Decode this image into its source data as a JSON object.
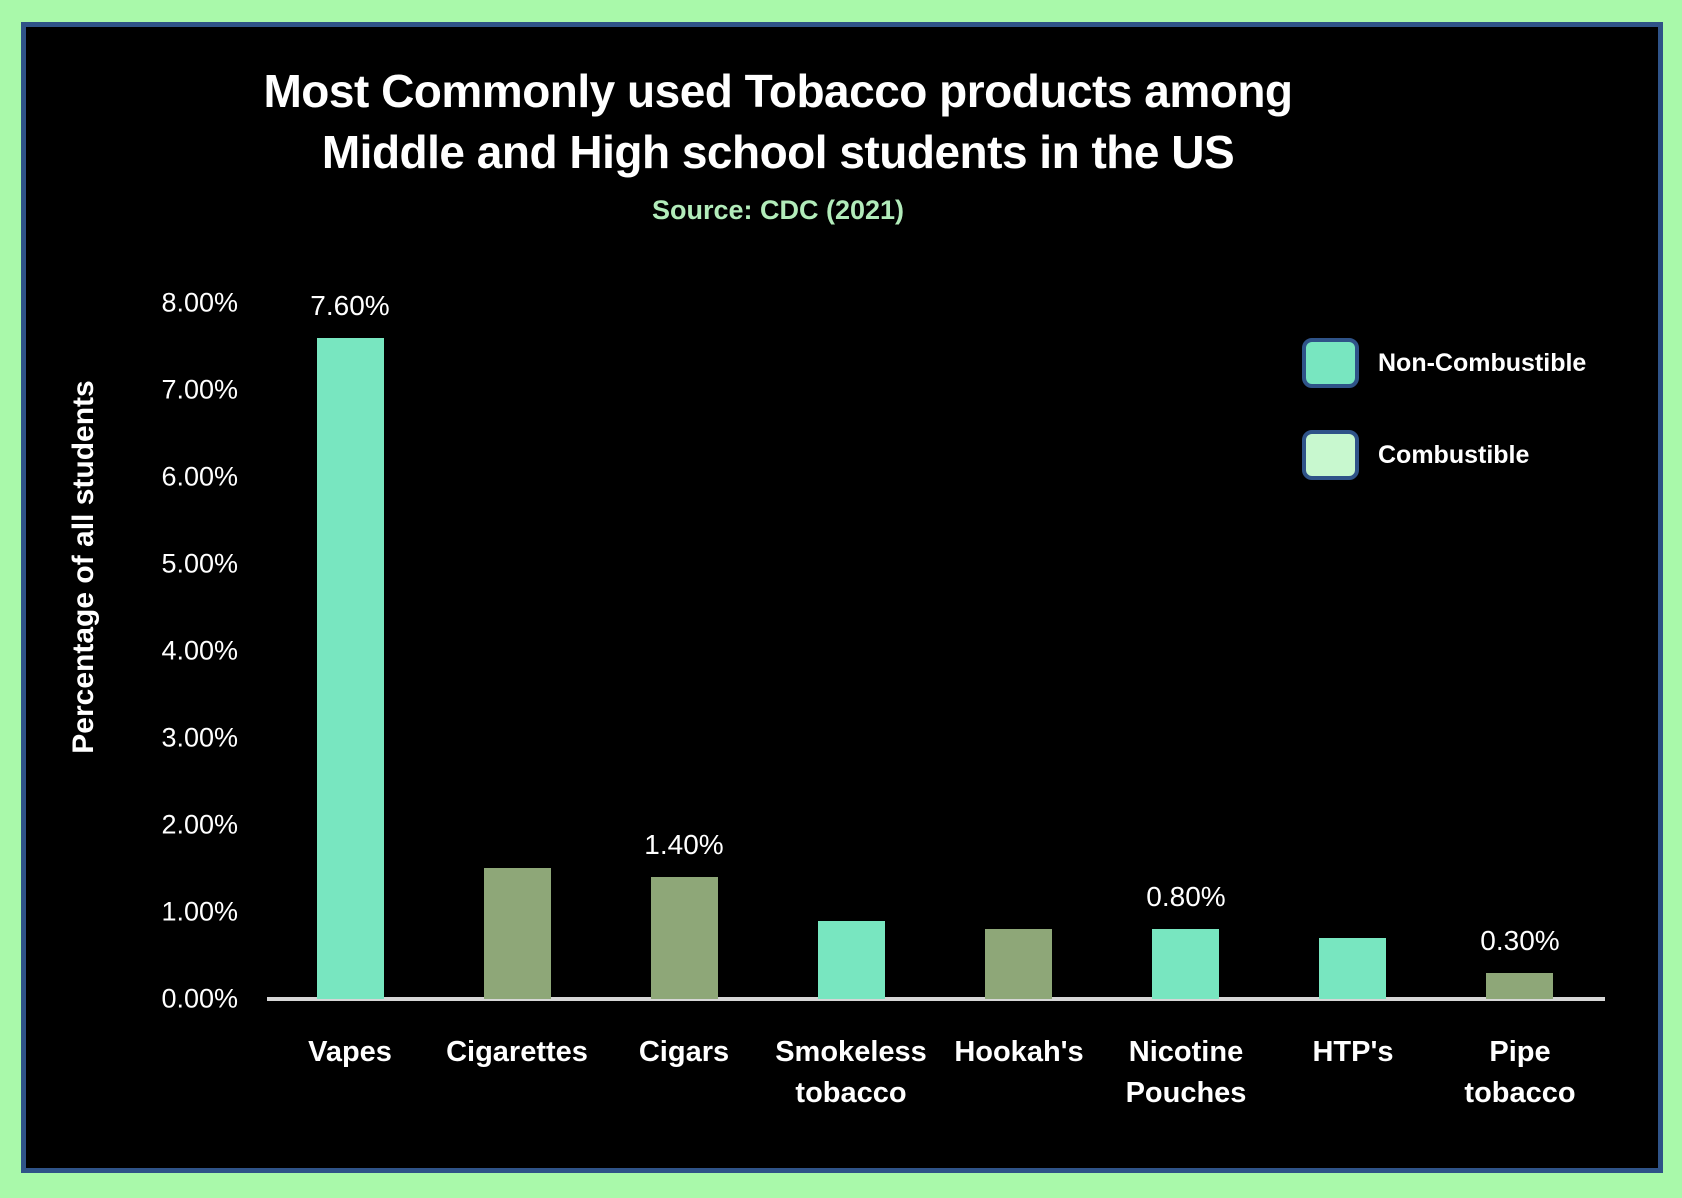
{
  "page": {
    "background": "#a9f9aa",
    "border_color": "#2f5388",
    "chart_background": "#000000"
  },
  "header": {
    "title_line1": "Most Commonly used Tobacco products among",
    "title_line2": "Middle and High school students in the US",
    "source": "Source: CDC (2021)",
    "source_color": "#b2ecba"
  },
  "legend": {
    "items": [
      {
        "label": "Non-Combustible",
        "swatch_color": "#78e6c0"
      },
      {
        "label": "Combustible",
        "swatch_color": "#c8f8cf"
      }
    ]
  },
  "chart_data": {
    "type": "bar",
    "title": "Most Commonly used Tobacco products among Middle and High school students in the US",
    "subtitle": "Source: CDC (2021)",
    "xlabel": "",
    "ylabel": "Percentage of all students",
    "ylim": [
      0,
      8
    ],
    "y_ticks": [
      "0.00%",
      "1.00%",
      "2.00%",
      "3.00%",
      "4.00%",
      "5.00%",
      "6.00%",
      "7.00%",
      "8.00%"
    ],
    "grid": false,
    "legend_position": "top-right",
    "categories": [
      "Vapes",
      "Cigarettes",
      "Cigars",
      "Smokeless tobacco",
      "Hookah's",
      "Nicotine Pouches",
      "HTP's",
      "Pipe tobacco"
    ],
    "values": [
      7.6,
      1.5,
      1.4,
      0.9,
      0.8,
      0.8,
      0.7,
      0.3
    ],
    "bar_types": [
      "Non-Combustible",
      "Combustible",
      "Combustible",
      "Non-Combustible",
      "Combustible",
      "Non-Combustible",
      "Non-Combustible",
      "Combustible"
    ],
    "data_labels": [
      "7.60%",
      "",
      "1.40%",
      "",
      "",
      "0.80%",
      "",
      "0.30%"
    ],
    "bar_colors": {
      "Non-Combustible": "#78e6c0",
      "Combustible": "#8ea778"
    },
    "axis_line_color": "#d6d6d6"
  }
}
